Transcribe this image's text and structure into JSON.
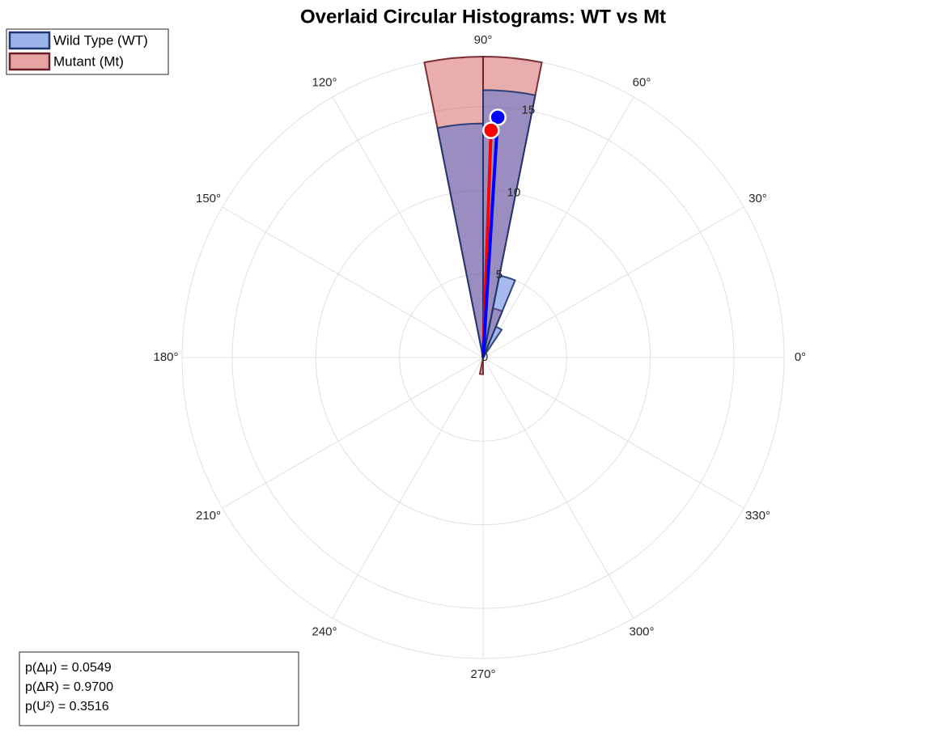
{
  "chart_data": {
    "type": "polar_histogram",
    "title": "Overlaid Circular Histograms: WT vs Mt",
    "bins": [
      0,
      11.25,
      22.5,
      33.75,
      45,
      56.25,
      67.5,
      78.75,
      90,
      101.25,
      112.5,
      123.75,
      135,
      146.25,
      157.5,
      168.75,
      180,
      191.25,
      202.5,
      213.75,
      225,
      236.25,
      247.5,
      258.75,
      270,
      281.25,
      292.5,
      303.75,
      315,
      326.25,
      337.5,
      348.75,
      360
    ],
    "series": [
      {
        "name": "Mutant (Mt)",
        "color": "#cf4a4a",
        "edge_color": "#6b1f26",
        "mean_color": "#ff0000",
        "values": [
          0,
          0,
          0,
          0,
          0,
          0,
          3,
          18,
          18,
          0,
          0,
          0,
          0,
          0,
          0,
          0,
          0,
          0,
          0,
          0,
          0,
          0,
          0,
          1,
          0,
          0,
          0,
          0,
          0,
          0,
          0,
          0
        ],
        "mean_angle": 88.0,
        "mean_length": 13.6
      },
      {
        "name": "Wild Type (WT)",
        "color": "#3a66d6",
        "edge_color": "#1f3570",
        "mean_color": "#0000ff",
        "values": [
          0,
          0,
          0,
          0,
          0,
          2,
          5,
          16,
          14,
          0,
          0,
          0,
          0,
          0,
          0,
          0,
          0,
          0,
          0,
          0,
          0,
          0,
          0,
          0,
          0,
          0,
          0,
          0,
          0,
          0,
          0,
          0
        ],
        "mean_angle": 86.5,
        "mean_length": 14.4
      }
    ],
    "rlim": [
      0,
      18
    ],
    "rticks": [
      0,
      5,
      10,
      15
    ],
    "thetaticks": [
      {
        "value": 0,
        "label": "0°"
      },
      {
        "value": 30,
        "label": "30°"
      },
      {
        "value": 60,
        "label": "60°"
      },
      {
        "value": 90,
        "label": "90°"
      },
      {
        "value": 120,
        "label": "120°"
      },
      {
        "value": 150,
        "label": "150°"
      },
      {
        "value": 180,
        "label": "180°"
      },
      {
        "value": 210,
        "label": "210°"
      },
      {
        "value": 240,
        "label": "240°"
      },
      {
        "value": 270,
        "label": "270°"
      },
      {
        "value": 300,
        "label": "300°"
      },
      {
        "value": 330,
        "label": "330°"
      }
    ],
    "annotations": [
      "p(Δμ) = 0.0549",
      "p(ΔR) = 0.9700",
      "p(U²) = 0.3516"
    ]
  }
}
